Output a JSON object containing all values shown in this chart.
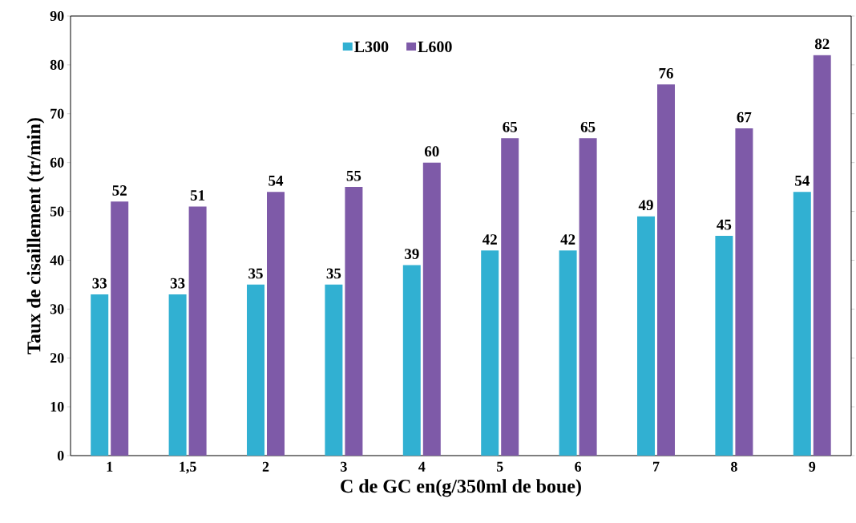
{
  "chart_data": {
    "type": "bar",
    "xlabel": "C de GC en(g/350ml de boue)",
    "ylabel": "Taux de cisaillement (tr/min)",
    "categories": [
      "1",
      "1,5",
      "2",
      "3",
      "4",
      "5",
      "6",
      "7",
      "8",
      "9"
    ],
    "series": [
      {
        "name": "L300",
        "color": "#31b0d2",
        "values": [
          33,
          33,
          35,
          35,
          39,
          42,
          42,
          49,
          45,
          54
        ]
      },
      {
        "name": "L600",
        "color": "#7e5aa8",
        "values": [
          52,
          51,
          54,
          55,
          60,
          65,
          65,
          76,
          67,
          82
        ]
      }
    ],
    "ylim": [
      0,
      90
    ],
    "yticks": [
      0,
      10,
      20,
      30,
      40,
      50,
      60,
      70,
      80,
      90
    ],
    "data_labels": true,
    "legend": "top",
    "grid": false
  }
}
